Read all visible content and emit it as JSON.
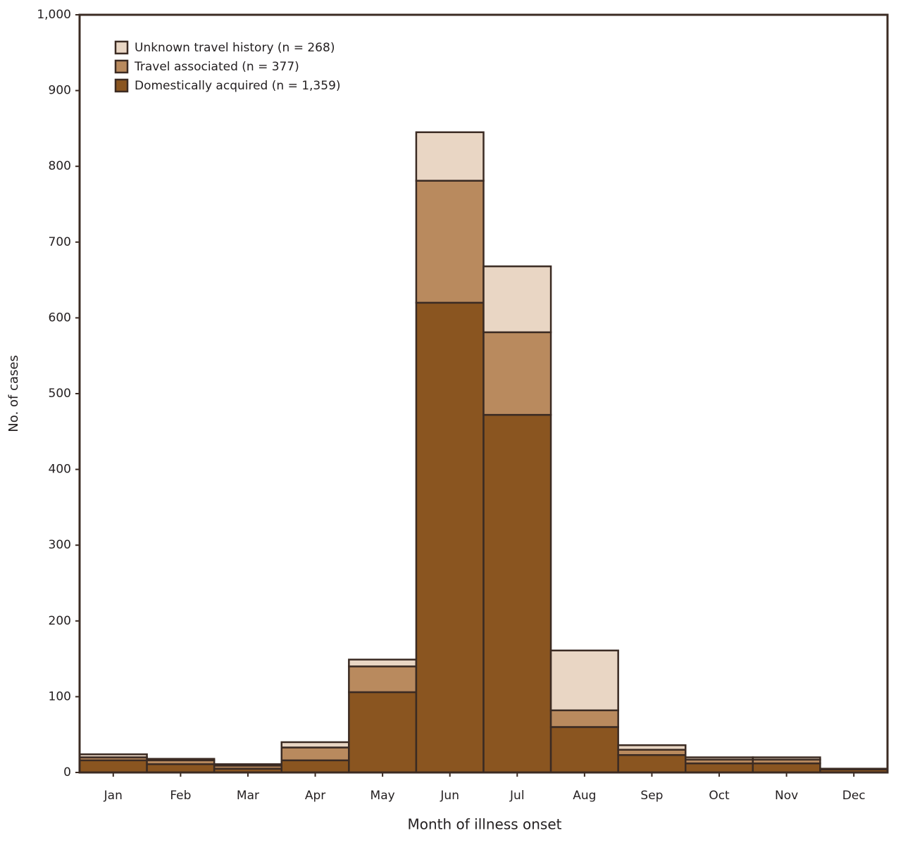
{
  "chart_data": {
    "type": "stacked_bar",
    "x_label": "Month of illness onset",
    "y_label": "No. of cases",
    "categories": [
      "Jan",
      "Feb",
      "Mar",
      "Apr",
      "May",
      "Jun",
      "Jul",
      "Aug",
      "Sep",
      "Oct",
      "Nov",
      "Dec"
    ],
    "series": [
      {
        "name": "Domestically acquired (n = 1,359)",
        "color": "#8a5520",
        "values": [
          16,
          11,
          5,
          16,
          106,
          620,
          472,
          60,
          23,
          12,
          12,
          4
        ]
      },
      {
        "name": "Travel associated (n = 377)",
        "color": "#b98a5e",
        "values": [
          4,
          5,
          4,
          17,
          34,
          161,
          109,
          22,
          7,
          5,
          5,
          1
        ]
      },
      {
        "name": "Unknown travel history (n = 268)",
        "color": "#e9d6c4",
        "values": [
          4,
          2,
          2,
          7,
          9,
          64,
          87,
          79,
          6,
          3,
          3,
          0
        ]
      }
    ],
    "ylim": [
      0,
      1000
    ],
    "yticks": [
      0,
      100,
      200,
      300,
      400,
      500,
      600,
      700,
      800,
      900,
      {
        "value": 1000,
        "label": "1,000"
      }
    ],
    "legend_position": "upper-left"
  }
}
